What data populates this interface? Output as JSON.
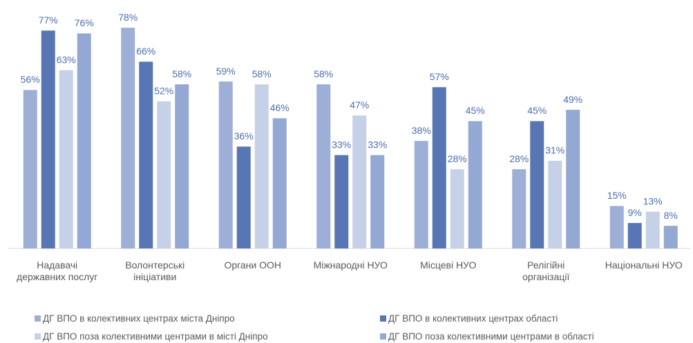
{
  "chart_data": {
    "type": "bar",
    "categories": [
      "Надавачі державних послуг",
      "Волонтерські ініціативи",
      "Органи ООН",
      "Міжнародні НУО",
      "Місцеві НУО",
      "Релігійні організації",
      "Національні НУО"
    ],
    "series": [
      {
        "name": "ДГ ВПО в колективних центрах міста Дніпро",
        "color": "#9dafd6",
        "values": [
          56,
          78,
          59,
          58,
          38,
          28,
          15
        ],
        "value_labels": [
          "56%",
          "78%",
          "59%",
          "58%",
          "38%",
          "28%",
          "15%"
        ]
      },
      {
        "name": "ДГ ВПО в колективних центрах області",
        "color": "#5876b3",
        "values": [
          77,
          66,
          36,
          33,
          57,
          45,
          9
        ],
        "value_labels": [
          "77%",
          "66%",
          "36%",
          "33%",
          "57%",
          "45%",
          "9%"
        ]
      },
      {
        "name": "ДГ ВПО поза колективними центрами в місті Дніпро",
        "color": "#c6d1e8",
        "values": [
          63,
          52,
          58,
          47,
          28,
          31,
          13
        ],
        "value_labels": [
          "63%",
          "52%",
          "58%",
          "47%",
          "28%",
          "31%",
          "13%"
        ]
      },
      {
        "name": "ДГ ВПО поза колективними центрами в області",
        "color": "#93a8d2",
        "values": [
          76,
          58,
          46,
          33,
          45,
          49,
          8
        ],
        "value_labels": [
          "76%",
          "58%",
          "46%",
          "33%",
          "45%",
          "49%",
          "8%"
        ]
      }
    ]
  }
}
